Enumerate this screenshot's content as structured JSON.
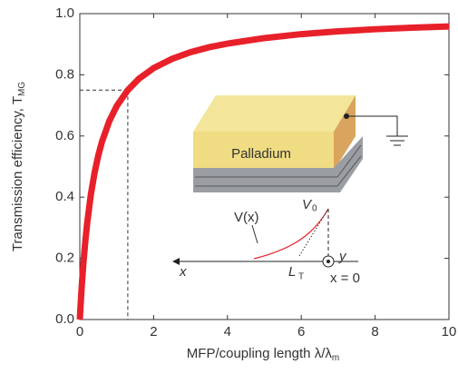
{
  "chart_data": {
    "type": "line",
    "ylabel": "Transmission efficiency, T",
    "ylabel_sub": "MG",
    "xlabel": "MFP/coupling length λ/λ",
    "xlabel_sub": "m",
    "xlim": [
      0,
      10
    ],
    "ylim": [
      0,
      1
    ],
    "xticks": [
      0,
      2,
      4,
      6,
      8,
      10
    ],
    "yticks": [
      {
        "value": 0,
        "label": "0.0"
      },
      0.2,
      0.4,
      0.6,
      0.8,
      {
        "value": 1,
        "label": "1.0"
      }
    ],
    "reference": {
      "x": 1.3,
      "y": 0.75
    },
    "series": [
      {
        "color": "#e8202a",
        "x": [
          0,
          0.02,
          0.04,
          0.06,
          0.1,
          0.15,
          0.2,
          0.3,
          0.4,
          0.5,
          0.6,
          0.8,
          1,
          1.3,
          1.6,
          2,
          2.5,
          3,
          3.5,
          4,
          5,
          6,
          7,
          8,
          9,
          10
        ],
        "values": [
          0,
          0.044,
          0.085,
          0.122,
          0.188,
          0.257,
          0.316,
          0.409,
          0.48,
          0.536,
          0.581,
          0.649,
          0.698,
          0.75,
          0.787,
          0.822,
          0.852,
          0.874,
          0.89,
          0.902,
          0.92,
          0.933,
          0.942,
          0.949,
          0.954,
          0.958
        ]
      }
    ],
    "inset": {
      "block": "Palladium",
      "potential": "V(x)",
      "v0": "V",
      "v0_sub": "0",
      "lt": "L",
      "lt_sub": "T",
      "axis_x": "x",
      "axis_y": "y",
      "origin": "x = 0"
    }
  }
}
